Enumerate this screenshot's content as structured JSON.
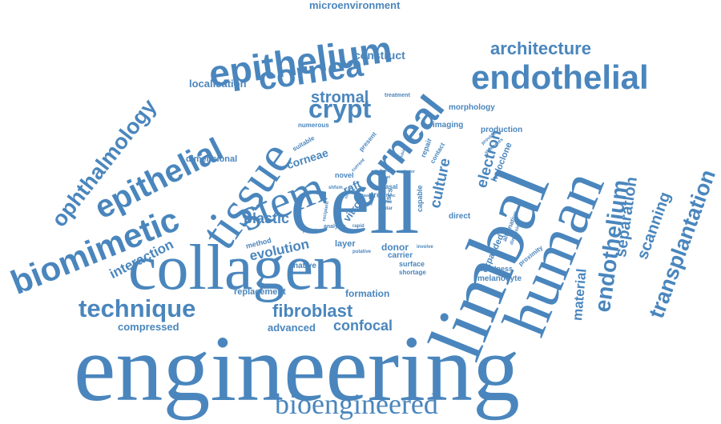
{
  "color": "#4a86bd",
  "words": [
    {
      "text": "engineering"
    },
    {
      "text": "cell"
    },
    {
      "text": "limbal"
    },
    {
      "text": "human"
    },
    {
      "text": "collagen"
    },
    {
      "text": "tissue"
    },
    {
      "text": "epithelium"
    },
    {
      "text": "corneal"
    },
    {
      "text": "stem"
    },
    {
      "text": "endothelial"
    },
    {
      "text": "cornea"
    },
    {
      "text": "epithelial"
    },
    {
      "text": "biomimetic"
    },
    {
      "text": "ophthalmology"
    },
    {
      "text": "technique"
    },
    {
      "text": "bioengineered"
    },
    {
      "text": "endothelium"
    },
    {
      "text": "transplantation"
    },
    {
      "text": "crypt"
    },
    {
      "text": "architecture"
    },
    {
      "text": "fibroblast"
    },
    {
      "text": "interaction"
    },
    {
      "text": "separation"
    },
    {
      "text": "scanning"
    },
    {
      "text": "stromal"
    },
    {
      "text": "culture"
    },
    {
      "text": "electron"
    },
    {
      "text": "material"
    },
    {
      "text": "confocal"
    },
    {
      "text": "plastic"
    },
    {
      "text": "evolution"
    },
    {
      "text": "construct"
    },
    {
      "text": "microenvironment"
    },
    {
      "text": "localisation"
    },
    {
      "text": "advanced"
    },
    {
      "text": "compressed"
    },
    {
      "text": "formation"
    },
    {
      "text": "replacement"
    },
    {
      "text": "dimensional"
    },
    {
      "text": "corneae"
    },
    {
      "text": "raft"
    },
    {
      "text": "vitro"
    },
    {
      "text": "morphology"
    },
    {
      "text": "imaging"
    },
    {
      "text": "production"
    },
    {
      "text": "holoclone"
    },
    {
      "text": "expanded"
    },
    {
      "text": "alternative"
    },
    {
      "text": "melanocyte"
    },
    {
      "text": "blindness"
    },
    {
      "text": "proximity"
    },
    {
      "text": "direct"
    },
    {
      "text": "capable"
    },
    {
      "text": "donor"
    },
    {
      "text": "carrier"
    },
    {
      "text": "surface"
    },
    {
      "text": "shortage"
    },
    {
      "text": "layer"
    },
    {
      "text": "native"
    },
    {
      "text": "method"
    },
    {
      "text": "proc"
    },
    {
      "text": "basal"
    },
    {
      "text": "lscs"
    },
    {
      "text": "numerous"
    },
    {
      "text": "suitable"
    },
    {
      "text": "present"
    },
    {
      "text": "repair"
    },
    {
      "text": "contact"
    },
    {
      "text": "provide"
    },
    {
      "text": "strategies"
    },
    {
      "text": "treatment"
    },
    {
      "text": "novel"
    },
    {
      "text": "current"
    },
    {
      "text": "shfsm"
    },
    {
      "text": "recipient"
    },
    {
      "text": "protein"
    },
    {
      "text": "analysis"
    },
    {
      "text": "rapid"
    },
    {
      "text": "ocular"
    },
    {
      "text": "close"
    },
    {
      "text": "involve"
    },
    {
      "text": "putative"
    },
    {
      "text": "dimension"
    },
    {
      "text": "study"
    },
    {
      "text": "simple"
    },
    {
      "text": "basis"
    },
    {
      "text": "hpsc"
    },
    {
      "text": "form"
    },
    {
      "text": "sheet"
    },
    {
      "text": "visible"
    },
    {
      "text": "factor"
    }
  ]
}
